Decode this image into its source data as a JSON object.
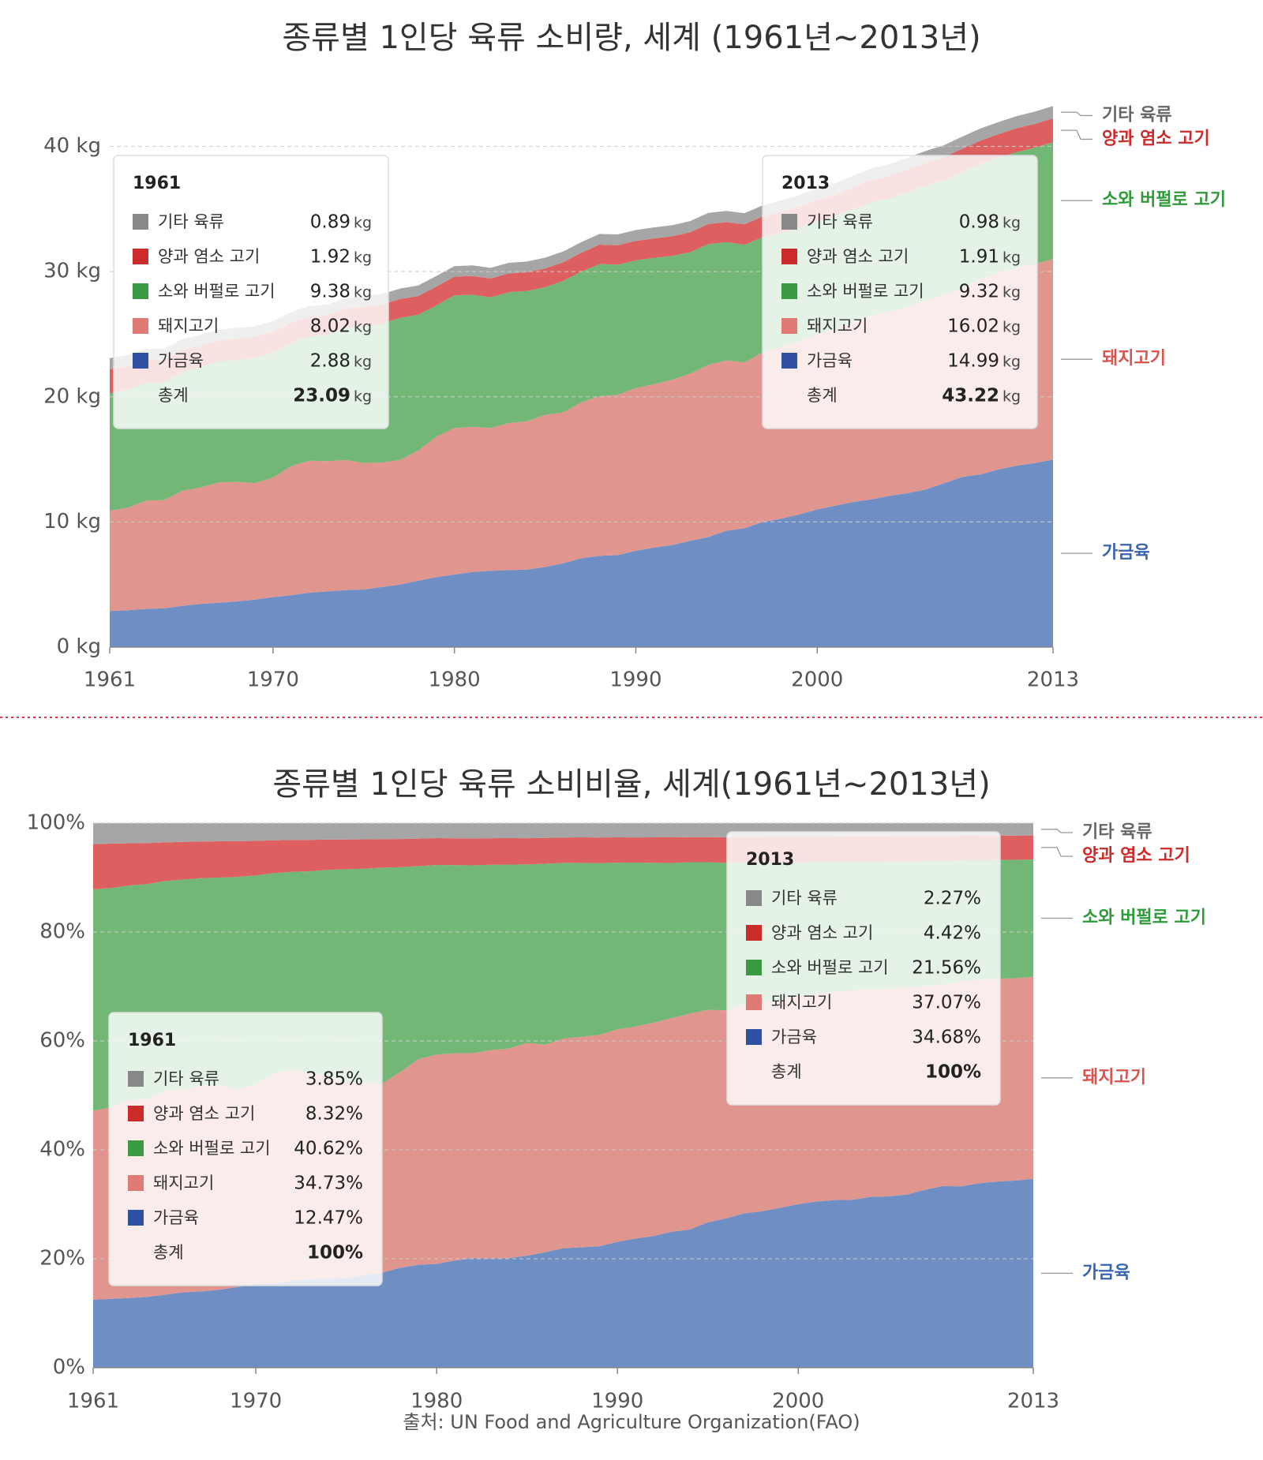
{
  "colors": {
    "other": "#a6a6a6",
    "sheep_goat": "#de5f5f",
    "cattle": "#72b776",
    "pig": "#e0968e",
    "poultry": "#6f8fc4",
    "other_swatch": "#888888",
    "sheep_goat_swatch": "#cc2b2b",
    "cattle_swatch": "#3a9a44",
    "pig_swatch": "#e07a74",
    "poultry_swatch": "#3050a4",
    "label_other": "#666666",
    "label_sheep_goat": "#cc2b2b",
    "label_cattle": "#2e9a3a",
    "label_pig": "#d9534f",
    "label_poultry": "#3a63b0",
    "divider": "#d9374b"
  },
  "chart_data": [
    {
      "type": "area",
      "stacked": true,
      "title": "종류별 1인당 육류 소비량, 세계 (1961년~2013년)",
      "ylim": [
        0,
        43.5
      ],
      "yticks": [
        0,
        10,
        20,
        30,
        40
      ],
      "ytick_labels": [
        "0 kg",
        "10 kg",
        "20 kg",
        "30 kg",
        "40 kg"
      ],
      "xticks": [
        1961,
        1970,
        1980,
        1990,
        2000,
        2013
      ],
      "xtick_labels": [
        "1961",
        "1970",
        "1980",
        "1990",
        "2000",
        "2013"
      ],
      "x": [
        1961,
        1962,
        1963,
        1964,
        1965,
        1966,
        1967,
        1968,
        1969,
        1970,
        1971,
        1972,
        1973,
        1974,
        1975,
        1976,
        1977,
        1978,
        1979,
        1980,
        1981,
        1982,
        1983,
        1984,
        1985,
        1986,
        1987,
        1988,
        1989,
        1990,
        1991,
        1992,
        1993,
        1994,
        1995,
        1996,
        1997,
        1998,
        1999,
        2000,
        2001,
        2002,
        2003,
        2004,
        2005,
        2006,
        2007,
        2008,
        2009,
        2010,
        2011,
        2012,
        2013
      ],
      "series_labels": [
        "가금육",
        "돼지고기",
        "소와 버펄로 고기",
        "양과 염소 고기",
        "기타 육류"
      ],
      "series": [
        {
          "name": "가금육",
          "key": "poultry",
          "values": [
            2.88,
            2.95,
            3.05,
            3.1,
            3.3,
            3.45,
            3.55,
            3.65,
            3.8,
            4.0,
            4.15,
            4.35,
            4.45,
            4.55,
            4.6,
            4.8,
            5.0,
            5.3,
            5.6,
            5.8,
            6.0,
            6.1,
            6.15,
            6.2,
            6.4,
            6.7,
            7.1,
            7.3,
            7.35,
            7.7,
            7.95,
            8.15,
            8.5,
            8.8,
            9.3,
            9.5,
            10.0,
            10.25,
            10.6,
            11.0,
            11.3,
            11.6,
            11.8,
            12.1,
            12.3,
            12.6,
            13.1,
            13.6,
            13.8,
            14.2,
            14.5,
            14.7,
            14.99
          ]
        },
        {
          "name": "돼지고기",
          "key": "pig",
          "values": [
            8.02,
            8.2,
            8.65,
            8.65,
            9.2,
            9.3,
            9.6,
            9.55,
            9.3,
            9.55,
            10.3,
            10.55,
            10.4,
            10.4,
            10.1,
            9.95,
            9.95,
            10.4,
            11.2,
            11.7,
            11.6,
            11.4,
            11.75,
            11.85,
            12.15,
            12.05,
            12.45,
            12.75,
            12.8,
            13.0,
            13.05,
            13.2,
            13.35,
            13.75,
            13.6,
            13.25,
            13.55,
            13.7,
            13.8,
            14.0,
            14.1,
            14.4,
            14.7,
            14.7,
            14.9,
            15.1,
            15.0,
            15.1,
            15.6,
            15.7,
            15.8,
            15.9,
            16.02
          ]
        },
        {
          "name": "소와 버펄로 고기",
          "key": "cattle",
          "values": [
            9.38,
            9.4,
            9.4,
            9.4,
            9.5,
            9.6,
            9.65,
            9.75,
            10.0,
            10.0,
            9.85,
            9.9,
            10.1,
            10.55,
            10.95,
            11.1,
            11.35,
            10.85,
            10.5,
            10.6,
            10.55,
            10.45,
            10.45,
            10.4,
            10.2,
            10.5,
            10.45,
            10.55,
            10.4,
            10.2,
            10.1,
            9.9,
            9.7,
            9.65,
            9.45,
            9.4,
            9.2,
            9.15,
            9.1,
            9.0,
            9.0,
            9.0,
            9.05,
            9.05,
            9.15,
            9.15,
            9.2,
            9.25,
            9.2,
            9.2,
            9.25,
            9.3,
            9.32
          ]
        },
        {
          "name": "양과 염소 고기",
          "key": "sheep_goat",
          "values": [
            1.92,
            1.9,
            1.85,
            1.8,
            1.75,
            1.72,
            1.7,
            1.7,
            1.68,
            1.65,
            1.62,
            1.6,
            1.58,
            1.55,
            1.53,
            1.52,
            1.5,
            1.5,
            1.5,
            1.5,
            1.5,
            1.5,
            1.5,
            1.5,
            1.5,
            1.5,
            1.5,
            1.55,
            1.55,
            1.55,
            1.55,
            1.57,
            1.6,
            1.6,
            1.6,
            1.62,
            1.65,
            1.67,
            1.7,
            1.72,
            1.72,
            1.75,
            1.78,
            1.8,
            1.82,
            1.85,
            1.85,
            1.87,
            1.87,
            1.88,
            1.9,
            1.9,
            1.91
          ]
        },
        {
          "name": "기타 육류",
          "key": "other",
          "values": [
            0.89,
            0.88,
            0.88,
            0.87,
            0.87,
            0.86,
            0.86,
            0.85,
            0.85,
            0.85,
            0.84,
            0.84,
            0.84,
            0.84,
            0.84,
            0.84,
            0.84,
            0.84,
            0.84,
            0.84,
            0.85,
            0.85,
            0.85,
            0.85,
            0.86,
            0.86,
            0.86,
            0.86,
            0.87,
            0.87,
            0.88,
            0.88,
            0.89,
            0.89,
            0.9,
            0.9,
            0.9,
            0.91,
            0.91,
            0.92,
            0.92,
            0.93,
            0.93,
            0.94,
            0.94,
            0.95,
            0.95,
            0.96,
            0.96,
            0.97,
            0.97,
            0.98,
            0.98
          ]
        }
      ],
      "annotations": [
        {
          "year": "1961",
          "rows": [
            {
              "label": "기타 육류",
              "key": "other",
              "value": "0.89",
              "unit": "kg"
            },
            {
              "label": "양과 염소 고기",
              "key": "sheep_goat",
              "value": "1.92",
              "unit": "kg"
            },
            {
              "label": "소와 버펄로 고기",
              "key": "cattle",
              "value": "9.38",
              "unit": "kg"
            },
            {
              "label": "돼지고기",
              "key": "pig",
              "value": "8.02",
              "unit": "kg"
            },
            {
              "label": "가금육",
              "key": "poultry",
              "value": "2.88",
              "unit": "kg"
            }
          ],
          "total_label": "총계",
          "total_value": "23.09",
          "total_unit": "kg"
        },
        {
          "year": "2013",
          "rows": [
            {
              "label": "기타 육류",
              "key": "other",
              "value": "0.98",
              "unit": "kg"
            },
            {
              "label": "양과 염소 고기",
              "key": "sheep_goat",
              "value": "1.91",
              "unit": "kg"
            },
            {
              "label": "소와 버펄로 고기",
              "key": "cattle",
              "value": "9.32",
              "unit": "kg"
            },
            {
              "label": "돼지고기",
              "key": "pig",
              "value": "16.02",
              "unit": "kg"
            },
            {
              "label": "가금육",
              "key": "poultry",
              "value": "14.99",
              "unit": "kg"
            }
          ],
          "total_label": "총계",
          "total_value": "43.22",
          "total_unit": "kg"
        }
      ]
    },
    {
      "type": "area",
      "stacked": true,
      "percent": true,
      "title": "종류별 1인당 육류 소비비율, 세계(1961년~2013년)",
      "ylim": [
        0,
        100
      ],
      "yticks": [
        0,
        20,
        40,
        60,
        80,
        100
      ],
      "ytick_labels": [
        "0%",
        "20%",
        "40%",
        "60%",
        "80%",
        "100%"
      ],
      "xticks": [
        1961,
        1970,
        1980,
        1990,
        2000,
        2013
      ],
      "xtick_labels": [
        "1961",
        "1970",
        "1980",
        "1990",
        "2000",
        "2013"
      ],
      "series_labels": [
        "가금육",
        "돼지고기",
        "소와 버펄로 고기",
        "양과 염소 고기",
        "기타 육류"
      ],
      "annotations": [
        {
          "year": "1961",
          "rows": [
            {
              "label": "기타 육류",
              "key": "other",
              "value": "3.85%"
            },
            {
              "label": "양과 염소 고기",
              "key": "sheep_goat",
              "value": "8.32%"
            },
            {
              "label": "소와 버펄로 고기",
              "key": "cattle",
              "value": "40.62%"
            },
            {
              "label": "돼지고기",
              "key": "pig",
              "value": "34.73%"
            },
            {
              "label": "가금육",
              "key": "poultry",
              "value": "12.47%"
            }
          ],
          "total_label": "총계",
          "total_value": "100%"
        },
        {
          "year": "2013",
          "rows": [
            {
              "label": "기타 육류",
              "key": "other",
              "value": "2.27%"
            },
            {
              "label": "양과 염소 고기",
              "key": "sheep_goat",
              "value": "4.42%"
            },
            {
              "label": "소와 버펄로 고기",
              "key": "cattle",
              "value": "21.56%"
            },
            {
              "label": "돼지고기",
              "key": "pig",
              "value": "37.07%"
            },
            {
              "label": "가금육",
              "key": "poultry",
              "value": "34.68%"
            }
          ],
          "total_label": "총계",
          "total_value": "100%"
        }
      ]
    }
  ],
  "source": "출처: UN Food and Agriculture Organization(FAO)"
}
